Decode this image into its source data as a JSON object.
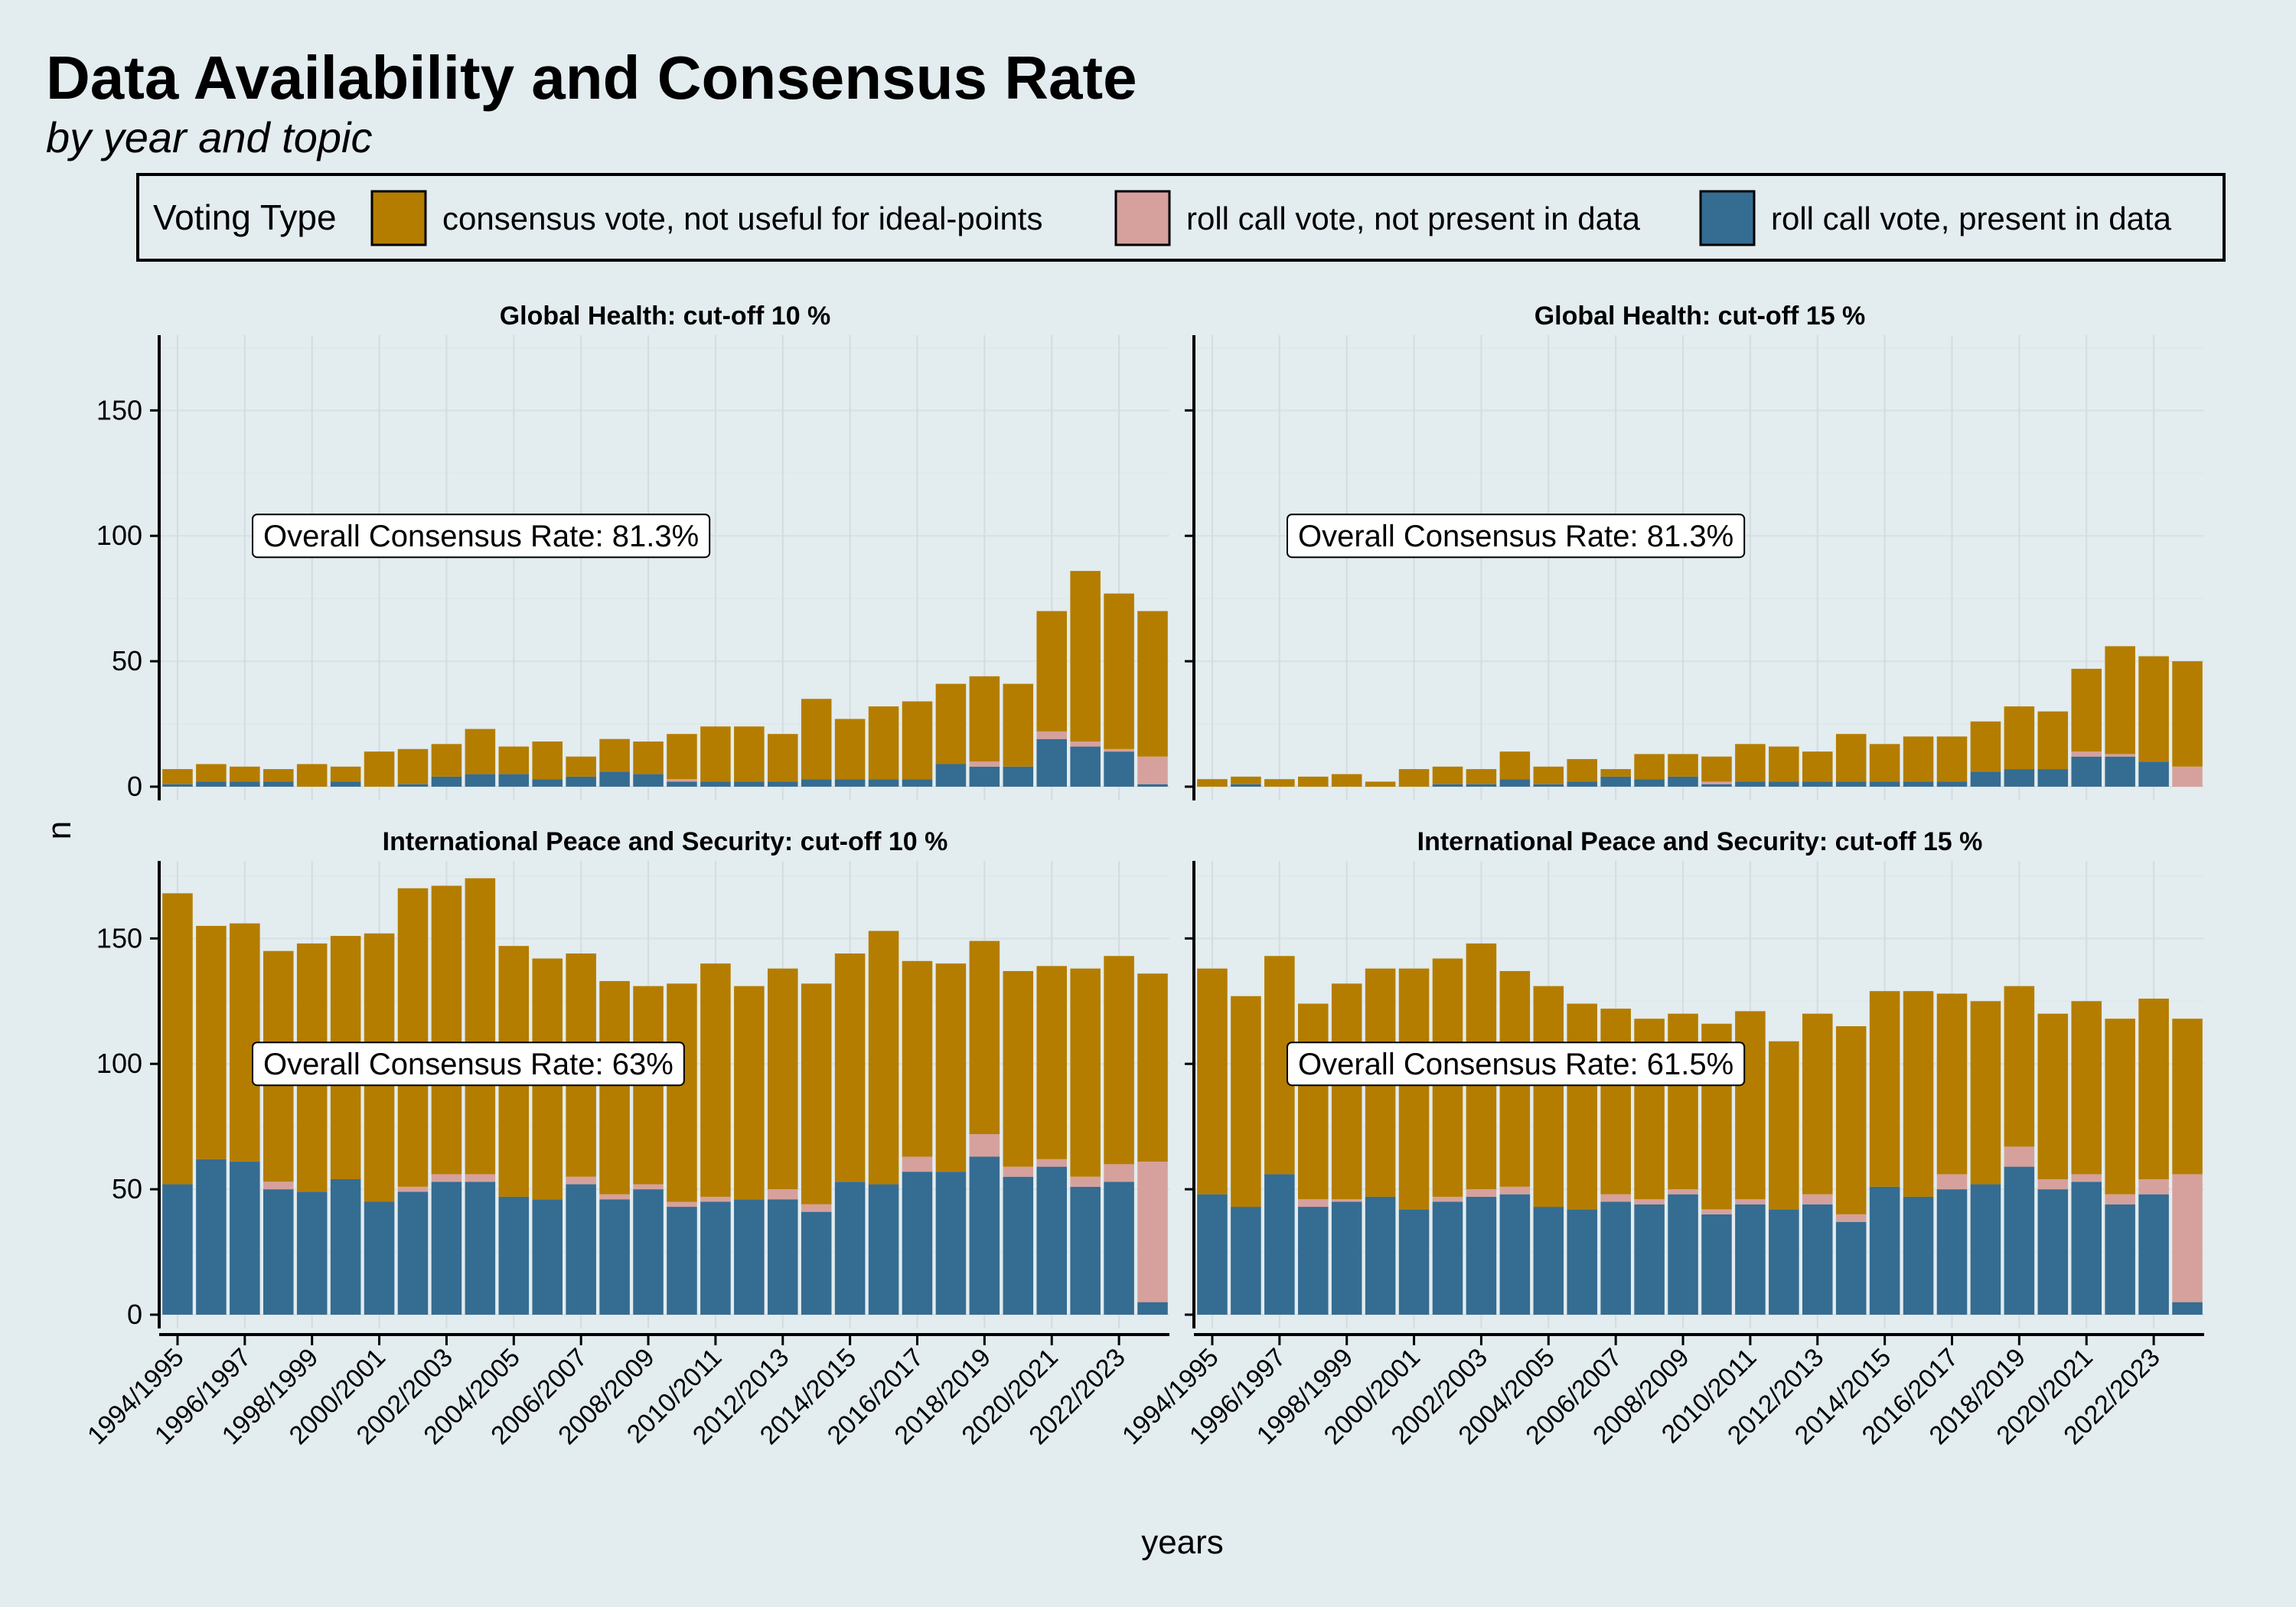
{
  "title": "Data Availability and Consensus Rate",
  "subtitle": "by year and topic",
  "legend": {
    "title": "Voting Type",
    "items": [
      {
        "label": "consensus vote, not useful for ideal-points",
        "color": "#b47d00"
      },
      {
        "label": "roll call vote, not present in data",
        "color": "#d6a19c"
      },
      {
        "label": "roll call vote, present in data",
        "color": "#356c91"
      }
    ]
  },
  "chart_data": {
    "type": "bar",
    "stacked": true,
    "xlabel": "years",
    "ylabel": "n",
    "ylim": [
      0,
      180
    ],
    "yticks": [
      0,
      50,
      100,
      150
    ],
    "grid": true,
    "legend_position": "top",
    "categories": [
      "1994/1995",
      "1995/1996",
      "1996/1997",
      "1997/1998",
      "1998/1999",
      "1999/2000",
      "2000/2001",
      "2001/2002",
      "2002/2003",
      "2003/2004",
      "2004/2005",
      "2005/2006",
      "2006/2007",
      "2007/2008",
      "2008/2009",
      "2009/2010",
      "2010/2011",
      "2011/2012",
      "2012/2013",
      "2013/2014",
      "2014/2015",
      "2015/2016",
      "2016/2017",
      "2017/2018",
      "2018/2019",
      "2019/2020",
      "2020/2021",
      "2021/2022",
      "2022/2023",
      "2023/2024"
    ],
    "tick_labels": [
      "1994/1995",
      "1996/1997",
      "1998/1999",
      "2000/2001",
      "2002/2003",
      "2004/2005",
      "2006/2007",
      "2008/2009",
      "2010/2011",
      "2012/2013",
      "2014/2015",
      "2016/2017",
      "2018/2019",
      "2020/2021",
      "2022/2023"
    ],
    "panels": [
      {
        "title": "Global Health: cut-off 10 %",
        "annotation": "Overall Consensus Rate: 81.3%",
        "series": [
          {
            "name": "roll call vote, present in data",
            "values": [
              1,
              2,
              2,
              2,
              0,
              2,
              0,
              1,
              4,
              5,
              5,
              3,
              4,
              6,
              5,
              2,
              2,
              2,
              2,
              3,
              3,
              3,
              3,
              9,
              8,
              8,
              19,
              16,
              14,
              1
            ]
          },
          {
            "name": "roll call vote, not present in data",
            "values": [
              0,
              0,
              0,
              0,
              0,
              0,
              0,
              0,
              0,
              0,
              0,
              0,
              0,
              0,
              0,
              1,
              0,
              0,
              0,
              0,
              0,
              0,
              0,
              0,
              2,
              0,
              3,
              2,
              1,
              11
            ]
          },
          {
            "name": "consensus vote, not useful for ideal-points",
            "values": [
              6,
              7,
              6,
              5,
              9,
              6,
              14,
              14,
              13,
              18,
              11,
              15,
              8,
              13,
              13,
              18,
              22,
              22,
              19,
              32,
              24,
              29,
              31,
              32,
              34,
              33,
              48,
              68,
              62,
              58
            ]
          }
        ]
      },
      {
        "title": "Global Health: cut-off 15 %",
        "annotation": "Overall Consensus Rate: 81.3%",
        "series": [
          {
            "name": "roll call vote, present in data",
            "values": [
              0,
              1,
              0,
              0,
              0,
              0,
              0,
              1,
              1,
              3,
              1,
              2,
              4,
              3,
              4,
              1,
              2,
              2,
              2,
              2,
              2,
              2,
              2,
              6,
              7,
              7,
              12,
              12,
              10,
              0
            ]
          },
          {
            "name": "roll call vote, not present in data",
            "values": [
              0,
              0,
              0,
              0,
              0,
              0,
              0,
              0,
              0,
              0,
              0,
              0,
              0,
              0,
              0,
              1,
              0,
              0,
              0,
              0,
              0,
              0,
              0,
              0,
              0,
              0,
              2,
              1,
              0,
              8
            ]
          },
          {
            "name": "consensus vote, not useful for ideal-points",
            "values": [
              3,
              3,
              3,
              4,
              5,
              2,
              7,
              7,
              6,
              11,
              7,
              9,
              3,
              10,
              9,
              10,
              15,
              14,
              12,
              19,
              15,
              18,
              18,
              20,
              25,
              23,
              33,
              43,
              42,
              42
            ]
          }
        ]
      },
      {
        "title": "International Peace and Security: cut-off 10 %",
        "annotation": "Overall Consensus Rate: 63%",
        "series": [
          {
            "name": "roll call vote, present in data",
            "values": [
              52,
              62,
              61,
              50,
              49,
              54,
              45,
              49,
              53,
              53,
              47,
              46,
              52,
              46,
              50,
              43,
              45,
              46,
              46,
              41,
              53,
              52,
              57,
              57,
              63,
              55,
              59,
              51,
              53,
              5
            ]
          },
          {
            "name": "roll call vote, not present in data",
            "values": [
              0,
              0,
              0,
              3,
              0,
              0,
              0,
              2,
              3,
              3,
              0,
              0,
              3,
              2,
              2,
              2,
              2,
              0,
              4,
              3,
              0,
              0,
              6,
              0,
              9,
              4,
              3,
              4,
              7,
              56
            ]
          },
          {
            "name": "consensus vote, not useful for ideal-points",
            "values": [
              116,
              93,
              95,
              92,
              99,
              97,
              107,
              119,
              115,
              118,
              100,
              96,
              89,
              85,
              79,
              87,
              93,
              85,
              88,
              88,
              91,
              101,
              78,
              83,
              77,
              78,
              77,
              83,
              83,
              75
            ]
          }
        ]
      },
      {
        "title": "International Peace and Security: cut-off 15 %",
        "annotation": "Overall Consensus Rate: 61.5%",
        "series": [
          {
            "name": "roll call vote, present in data",
            "values": [
              48,
              43,
              56,
              43,
              45,
              47,
              42,
              45,
              47,
              48,
              43,
              42,
              45,
              44,
              48,
              40,
              44,
              42,
              44,
              37,
              51,
              47,
              50,
              52,
              59,
              50,
              53,
              44,
              48,
              5
            ]
          },
          {
            "name": "roll call vote, not present in data",
            "values": [
              0,
              0,
              0,
              3,
              1,
              0,
              0,
              2,
              3,
              3,
              0,
              0,
              3,
              2,
              2,
              2,
              2,
              0,
              4,
              3,
              0,
              0,
              6,
              0,
              8,
              4,
              3,
              4,
              6,
              51
            ]
          },
          {
            "name": "consensus vote, not useful for ideal-points",
            "values": [
              90,
              84,
              87,
              78,
              86,
              91,
              96,
              95,
              98,
              86,
              88,
              82,
              74,
              72,
              70,
              74,
              75,
              67,
              72,
              75,
              78,
              82,
              72,
              73,
              64,
              66,
              69,
              70,
              72,
              62
            ]
          }
        ]
      }
    ]
  }
}
